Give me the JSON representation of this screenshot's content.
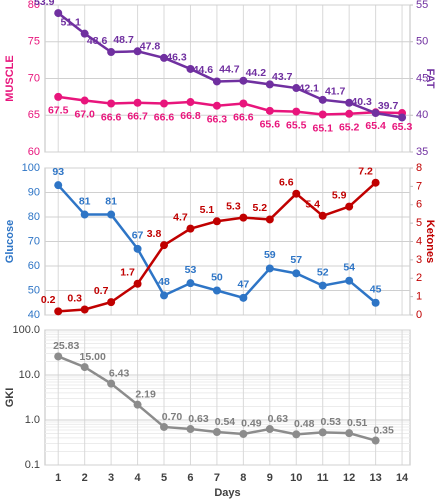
{
  "chart_data": [
    {
      "type": "line",
      "x": [
        1,
        2,
        3,
        4,
        5,
        6,
        7,
        8,
        9,
        10,
        11,
        12,
        13,
        14
      ],
      "xlim": [
        0.5,
        14.3
      ],
      "ylabel": "MUSCLE",
      "y2label": "FAT",
      "ylim": [
        60,
        80
      ],
      "yticks": [
        60,
        65,
        70,
        75,
        80
      ],
      "y2lim": [
        35,
        55
      ],
      "y2ticks": [
        35,
        40,
        45,
        50,
        55
      ],
      "grid": true,
      "series": [
        {
          "name": "MUSCLE",
          "color": "#e8157c",
          "values": [
            67.5,
            67.0,
            66.6,
            66.7,
            66.6,
            66.8,
            66.3,
            66.6,
            65.6,
            65.5,
            65.1,
            65.2,
            65.4,
            65.3
          ],
          "value_labels": [
            "67.5",
            "67.0",
            "66.6",
            "66.7",
            "66.6",
            "66.8",
            "66.3",
            "66.6",
            "65.6",
            "65.5",
            "65.1",
            "65.2",
            "65.4",
            "65.3"
          ]
        },
        {
          "name": "FAT",
          "color": "#7030a0",
          "axis": "y2",
          "values": [
            53.9,
            51.1,
            48.6,
            48.7,
            47.8,
            46.3,
            44.6,
            44.7,
            44.2,
            43.7,
            42.1,
            41.7,
            40.3,
            39.7
          ]
        }
      ]
    },
    {
      "type": "line",
      "x": [
        1,
        2,
        3,
        4,
        5,
        6,
        7,
        8,
        9,
        10,
        11,
        12,
        13
      ],
      "xlim": [
        0.5,
        14.3
      ],
      "ylabel": "Glucose",
      "y2label": "Ketones",
      "ylim": [
        40,
        100
      ],
      "yticks": [
        40,
        50,
        60,
        70,
        80,
        90,
        100
      ],
      "y2lim": [
        0,
        8
      ],
      "y2ticks": [
        0,
        1,
        2,
        3,
        4,
        5,
        6,
        7,
        8
      ],
      "grid": true,
      "series": [
        {
          "name": "Glucose",
          "color": "#2e75c6",
          "values": [
            93,
            81,
            81,
            67,
            48,
            53,
            50,
            47,
            59,
            57,
            52,
            54,
            45
          ]
        },
        {
          "name": "Ketones",
          "color": "#c00000",
          "axis": "y2",
          "values": [
            0.2,
            0.3,
            0.7,
            1.7,
            3.8,
            4.7,
            5.1,
            5.3,
            5.2,
            6.6,
            5.4,
            5.9,
            7.2
          ]
        }
      ]
    },
    {
      "type": "line",
      "x": [
        1,
        2,
        3,
        4,
        5,
        6,
        7,
        8,
        9,
        10,
        11,
        12,
        13
      ],
      "xlim": [
        0.5,
        14.3
      ],
      "xticks": [
        1,
        2,
        3,
        4,
        5,
        6,
        7,
        8,
        9,
        10,
        11,
        12,
        13,
        14
      ],
      "xlabel": "Days",
      "ylabel": "GKI",
      "log_y": true,
      "ylim": [
        0.1,
        100
      ],
      "yticks": [
        0.1,
        {
          "value": 1,
          "label": "1.0"
        },
        {
          "value": 10,
          "label": "10.0"
        },
        {
          "value": 100,
          "label": "100.0"
        }
      ],
      "grid": true,
      "series": [
        {
          "name": "GKI",
          "color": "#8c8c8c",
          "values": [
            25.83,
            15.0,
            6.43,
            2.19,
            0.7,
            0.63,
            0.54,
            0.49,
            0.63,
            0.48,
            0.53,
            0.51,
            0.35
          ],
          "value_labels": [
            "25.83",
            "15.00",
            "6.43",
            "2.19",
            "0.70",
            "0.63",
            "0.54",
            "0.49",
            "0.63",
            "0.48",
            "0.53",
            "0.51",
            "0.35"
          ]
        }
      ]
    }
  ]
}
